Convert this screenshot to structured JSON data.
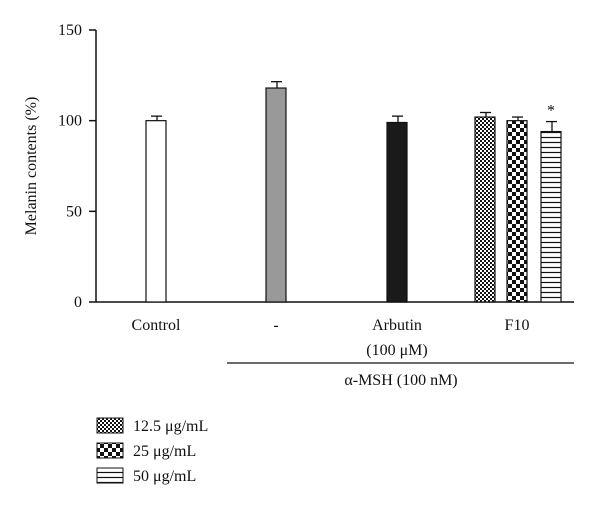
{
  "chart_data": {
    "type": "bar",
    "ylabel": "Melanin contents (%)",
    "ylim": [
      0,
      150
    ],
    "yticks": [
      0,
      50,
      100,
      150
    ],
    "groups": [
      "Control",
      "-",
      "Arbutin",
      "F10"
    ],
    "group_sublabel": "(100 μM)",
    "treatment_label": "α-MSH (100 nM)",
    "bars": [
      {
        "group": "Control",
        "value": 100,
        "error": 2.5,
        "fill": "white"
      },
      {
        "group": "-",
        "value": 118,
        "error": 3.5,
        "fill": "gray"
      },
      {
        "group": "Arbutin",
        "value": 99,
        "error": 3.5,
        "fill": "black"
      },
      {
        "group": "F10",
        "series": "12.5 μg/mL",
        "value": 102,
        "error": 2.5,
        "fill": "checker-small"
      },
      {
        "group": "F10",
        "series": "25 μg/mL",
        "value": 100,
        "error": 2,
        "fill": "checker-large"
      },
      {
        "group": "F10",
        "series": "50 μg/mL",
        "value": 94,
        "error": 5.5,
        "fill": "horizontal-lines",
        "annotation": "*"
      }
    ],
    "legend": [
      {
        "label": "12.5 μg/mL",
        "fill": "checker-small"
      },
      {
        "label": "25 μg/mL",
        "fill": "checker-large"
      },
      {
        "label": "50 μg/mL",
        "fill": "horizontal-lines"
      }
    ],
    "legend_position": "bottom-left",
    "grid": false,
    "colors": {
      "gray": "#999999",
      "black": "#1a1a1a",
      "outline": "#111111"
    }
  }
}
